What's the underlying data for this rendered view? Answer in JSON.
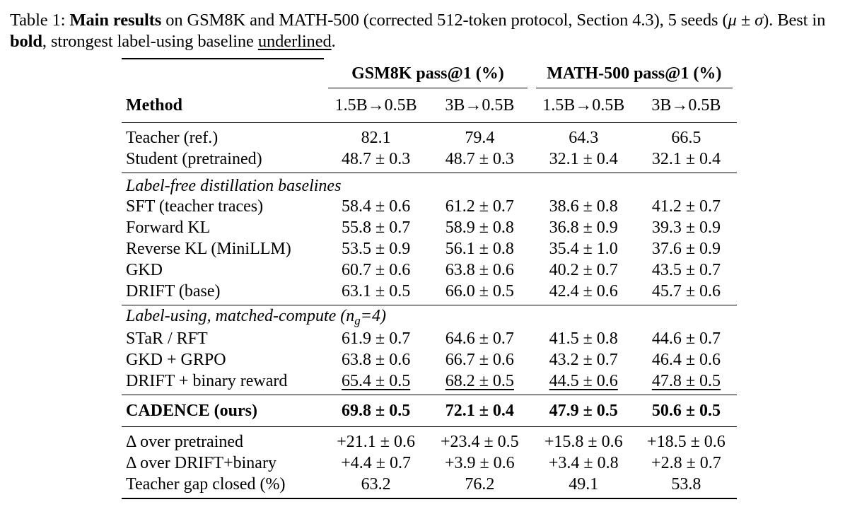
{
  "caption": {
    "label": "Table 1:",
    "bold_lead": "Main results",
    "text_1": " on GSM8K and MATH-500 (corrected 512-token protocol, Section 4.3), 5 seeds (",
    "math": "μ ± σ",
    "text_2": "). Best in ",
    "bold_word": "bold",
    "text_3": ", strongest label-using baseline ",
    "underlined_word": "underlined",
    "text_4": "."
  },
  "header": {
    "group_1": "GSM8K pass@1 (%)",
    "group_2": "MATH-500 pass@1 (%)",
    "method_label": "Method",
    "sub_cols": [
      "1.5B→0.5B",
      "3B→0.5B",
      "1.5B→0.5B",
      "3B→0.5B"
    ]
  },
  "reference_rows": [
    {
      "method": "Teacher (ref.)",
      "values": [
        "82.1",
        "79.4",
        "64.3",
        "66.5"
      ]
    },
    {
      "method": "Student (pretrained)",
      "values": [
        "48.7 ± 0.3",
        "48.7 ± 0.3",
        "32.1 ± 0.4",
        "32.1 ± 0.4"
      ]
    }
  ],
  "label_free": {
    "title": "Label-free distillation baselines",
    "rows": [
      {
        "method": "SFT (teacher traces)",
        "values": [
          "58.4 ± 0.6",
          "61.2 ± 0.7",
          "38.6 ± 0.8",
          "41.2 ± 0.7"
        ]
      },
      {
        "method": "Forward KL",
        "values": [
          "55.8 ± 0.7",
          "58.9 ± 0.8",
          "36.8 ± 0.9",
          "39.3 ± 0.9"
        ]
      },
      {
        "method": "Reverse KL (MiniLLM)",
        "values": [
          "53.5 ± 0.9",
          "56.1 ± 0.8",
          "35.4 ± 1.0",
          "37.6 ± 0.9"
        ]
      },
      {
        "method": "GKD",
        "values": [
          "60.7 ± 0.6",
          "63.8 ± 0.6",
          "40.2 ± 0.7",
          "43.5 ± 0.7"
        ]
      },
      {
        "method": "DRIFT (base)",
        "values": [
          "63.1 ± 0.5",
          "66.0 ± 0.5",
          "42.4 ± 0.6",
          "45.7 ± 0.6"
        ]
      }
    ]
  },
  "label_using": {
    "title_prefix": "Label-using, matched-compute (",
    "title_var": "n",
    "title_sub": "g",
    "title_suffix": "=4)",
    "rows": [
      {
        "method": "STaR / RFT",
        "values": [
          "61.9 ± 0.7",
          "64.6 ± 0.7",
          "41.5 ± 0.8",
          "44.6 ± 0.7"
        ]
      },
      {
        "method": "GKD + GRPO",
        "values": [
          "63.8 ± 0.6",
          "66.7 ± 0.6",
          "43.2 ± 0.7",
          "46.4 ± 0.6"
        ]
      },
      {
        "method": "DRIFT + binary reward",
        "values": [
          "65.4 ± 0.5",
          "68.2 ± 0.5",
          "44.5 ± 0.6",
          "47.8 ± 0.5"
        ]
      }
    ]
  },
  "ours": {
    "method": "CADENCE (ours)",
    "values": [
      "69.8 ± 0.5",
      "72.1 ± 0.4",
      "47.9 ± 0.5",
      "50.6 ± 0.5"
    ]
  },
  "deltas": [
    {
      "method": "Δ over pretrained",
      "values": [
        "+21.1 ± 0.6",
        "+23.4 ± 0.5",
        "+15.8 ± 0.6",
        "+18.5 ± 0.6"
      ]
    },
    {
      "method": "Δ over DRIFT+binary",
      "values": [
        "+4.4 ± 0.7",
        "+3.9 ± 0.6",
        "+3.4 ± 0.8",
        "+2.8 ± 0.7"
      ]
    },
    {
      "method": "Teacher gap closed (%)",
      "values": [
        "63.2",
        "76.2",
        "49.1",
        "53.8"
      ]
    }
  ]
}
